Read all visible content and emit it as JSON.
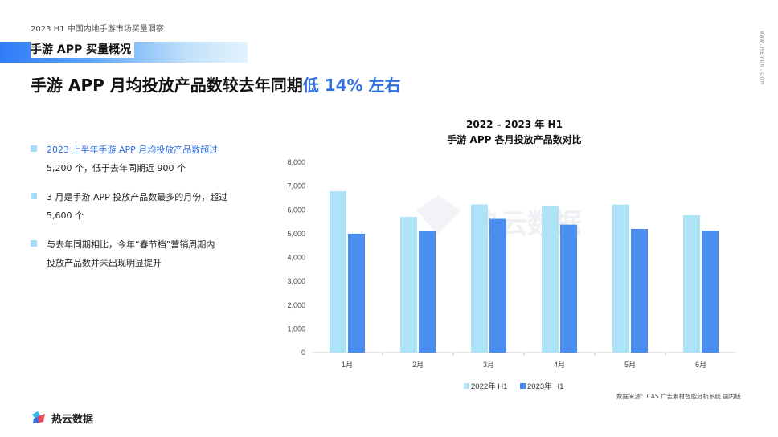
{
  "header": {
    "report_title": "2023 H1 中国内地手游市场买量洞察",
    "section": "手游 APP 买量概况",
    "headline_main": "手游 APP 月均投放产品数较去年同期",
    "headline_highlight": "低 14% 左右",
    "side_url": "WWW.REYUN.COM"
  },
  "bullets": [
    {
      "a": "2023 上半年手游 APP 月均投放产品数超过",
      "b": "5,200 个，低于去年同期近 900 个"
    },
    {
      "a": "3 月是手游 APP 投放产品数最多的月份，超过",
      "b": "5,600 个"
    },
    {
      "a": "与去年同期相比，今年“春节档”营销周期内",
      "b": "投放产品数并未出现明显提升"
    }
  ],
  "watermark": "热云数据",
  "chart_data": {
    "type": "bar",
    "title_line1": "2022 – 2023 年 H1",
    "title_line2": "手游 APP 各月投放产品数对比",
    "categories": [
      "1月",
      "2月",
      "3月",
      "4月",
      "5月",
      "6月"
    ],
    "series": [
      {
        "name": "2022年 H1",
        "color": "#aee2f7",
        "values": [
          6780,
          5700,
          6230,
          6180,
          6220,
          5770
        ]
      },
      {
        "name": "2023年 H1",
        "color": "#4a8ff0",
        "values": [
          5000,
          5100,
          5620,
          5380,
          5200,
          5130
        ]
      }
    ],
    "y_ticks": [
      "0",
      "1,000",
      "2,000",
      "3,000",
      "4,000",
      "5,000",
      "6,000",
      "7,000",
      "8,000"
    ],
    "ylim": [
      0,
      8000
    ],
    "grid": false,
    "legend": "bottom"
  },
  "footer": {
    "source": "数据来源：CAS 广告素材智能分析系统 国内版",
    "logo_text": "热云数据"
  }
}
